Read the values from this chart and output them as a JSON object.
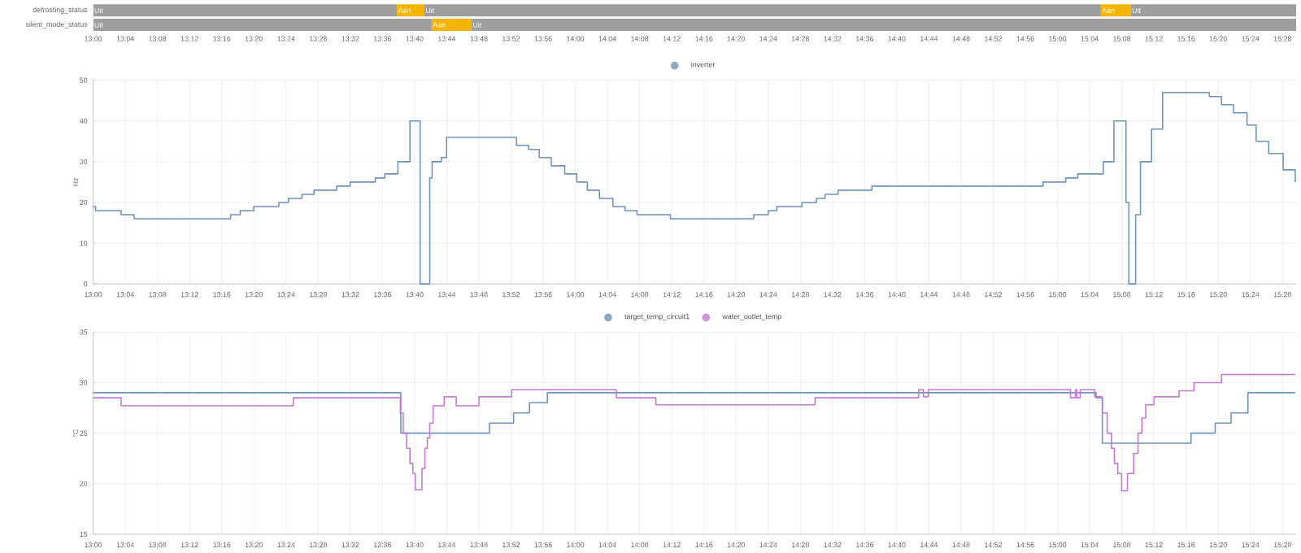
{
  "chart_data": [
    {
      "type": "bar",
      "orientation": "horizontal",
      "categories": [
        "defrosting_status",
        "silent_mode_status"
      ],
      "series": [
        {
          "name": "Uit",
          "color": "#9e9e9e",
          "base": [
            13,
            13
          ],
          "values": [
            0.63,
            0.702
          ]
        },
        {
          "name": "Aan",
          "color": "#f5b400",
          "base": [
            13.63,
            13.702
          ],
          "values": [
            0.057,
            0.083
          ]
        },
        {
          "name": "Uit",
          "color": "#9e9e9e",
          "base": [
            13.687,
            13.785
          ],
          "values": [
            1.403,
            1.71
          ]
        },
        {
          "name": "Aan",
          "color": "#f5b400",
          "base": [
            15.09,
            null
          ],
          "values": [
            0.062,
            null
          ]
        },
        {
          "name": "Uit",
          "color": "#9e9e9e",
          "base": [
            15.152,
            null
          ],
          "values": [
            0.343,
            null
          ]
        }
      ],
      "xlim": [
        13,
        15.495
      ],
      "xticks": [
        {
          "value": 13,
          "label": "13:00"
        },
        {
          "value": 13.0667,
          "label": "13:04"
        },
        {
          "value": 13.1333,
          "label": "13:08"
        },
        {
          "value": 13.2,
          "label": "13:12"
        },
        {
          "value": 13.2667,
          "label": "13:16"
        },
        {
          "value": 13.3333,
          "label": "13:20"
        },
        {
          "value": 13.4,
          "label": "13:24"
        },
        {
          "value": 13.4667,
          "label": "13:28"
        },
        {
          "value": 13.5333,
          "label": "13:32"
        },
        {
          "value": 13.6,
          "label": "13:36"
        },
        {
          "value": 13.6667,
          "label": "13:40"
        },
        {
          "value": 13.7333,
          "label": "13:44"
        },
        {
          "value": 13.8,
          "label": "13:48"
        },
        {
          "value": 13.8667,
          "label": "13:52"
        },
        {
          "value": 13.9333,
          "label": "13:56"
        },
        {
          "value": 14,
          "label": "14:00"
        },
        {
          "value": 14.0667,
          "label": "14:04"
        },
        {
          "value": 14.1333,
          "label": "14:08"
        },
        {
          "value": 14.2,
          "label": "14:12"
        },
        {
          "value": 14.2667,
          "label": "14:16"
        },
        {
          "value": 14.3333,
          "label": "14:20"
        },
        {
          "value": 14.4,
          "label": "14:24"
        },
        {
          "value": 14.4667,
          "label": "14:28"
        },
        {
          "value": 14.5333,
          "label": "14:32"
        },
        {
          "value": 14.6,
          "label": "14:36"
        },
        {
          "value": 14.6667,
          "label": "14:40"
        },
        {
          "value": 14.7333,
          "label": "14:44"
        },
        {
          "value": 14.8,
          "label": "14:48"
        },
        {
          "value": 14.8667,
          "label": "14:52"
        },
        {
          "value": 14.9333,
          "label": "14:56"
        },
        {
          "value": 15,
          "label": "15:00"
        },
        {
          "value": 15.0667,
          "label": "15:04"
        },
        {
          "value": 15.1333,
          "label": "15:08"
        },
        {
          "value": 15.2,
          "label": "15:12"
        },
        {
          "value": 15.2667,
          "label": "15:16"
        },
        {
          "value": 15.3333,
          "label": "15:20"
        },
        {
          "value": 15.4,
          "label": "15:24"
        },
        {
          "value": 15.4667,
          "label": "15:28"
        }
      ]
    },
    {
      "type": "step",
      "ylabel": "Hz",
      "legend": "top",
      "grid": true,
      "series": [
        {
          "name": "inverter",
          "color": "#7293b8",
          "x": [
            13.0,
            13.005,
            13.058,
            13.085,
            13.285,
            13.305,
            13.333,
            13.385,
            13.405,
            13.433,
            13.458,
            13.505,
            13.533,
            13.585,
            13.605,
            13.632,
            13.657,
            13.678,
            13.698,
            13.703,
            13.722,
            13.733,
            13.878,
            13.903,
            13.925,
            13.95,
            13.978,
            14.003,
            14.025,
            14.05,
            14.078,
            14.103,
            14.128,
            14.197,
            14.37,
            14.4,
            14.418,
            14.47,
            14.5,
            14.518,
            14.545,
            14.615,
            14.97,
            15.017,
            15.042,
            15.095,
            15.117,
            15.142,
            15.148,
            15.162,
            15.172,
            15.195,
            15.218,
            15.315,
            15.34,
            15.365,
            15.393,
            15.412,
            15.438,
            15.468,
            15.493
          ],
          "values": [
            19,
            18,
            17,
            16,
            17,
            18,
            19,
            20,
            21,
            22,
            23,
            24,
            25,
            26,
            27,
            30,
            40,
            0,
            26,
            30,
            31,
            36,
            34,
            33,
            31,
            29,
            27,
            25,
            23,
            21,
            19,
            18,
            17,
            16,
            17,
            18,
            19,
            20,
            21,
            22,
            23,
            24,
            25,
            26,
            27,
            30,
            40,
            20,
            0,
            17,
            30,
            38,
            47,
            46,
            44,
            42,
            39,
            35,
            32,
            28,
            25
          ]
        }
      ],
      "xlim": [
        13,
        15.495
      ],
      "ylim": [
        0,
        50
      ],
      "yticks": [
        0,
        10,
        20,
        30,
        40,
        50
      ],
      "xticks": [
        {
          "value": 13,
          "label": "13:00"
        },
        {
          "value": 13.0667,
          "label": "13:04"
        },
        {
          "value": 13.1333,
          "label": "13:08"
        },
        {
          "value": 13.2,
          "label": "13:12"
        },
        {
          "value": 13.2667,
          "label": "13:16"
        },
        {
          "value": 13.3333,
          "label": "13:20"
        },
        {
          "value": 13.4,
          "label": "13:24"
        },
        {
          "value": 13.4667,
          "label": "13:28"
        },
        {
          "value": 13.5333,
          "label": "13:32"
        },
        {
          "value": 13.6,
          "label": "13:36"
        },
        {
          "value": 13.6667,
          "label": "13:40"
        },
        {
          "value": 13.7333,
          "label": "13:44"
        },
        {
          "value": 13.8,
          "label": "13:48"
        },
        {
          "value": 13.8667,
          "label": "13:52"
        },
        {
          "value": 13.9333,
          "label": "13:56"
        },
        {
          "value": 14,
          "label": "14:00"
        },
        {
          "value": 14.0667,
          "label": "14:04"
        },
        {
          "value": 14.1333,
          "label": "14:08"
        },
        {
          "value": 14.2,
          "label": "14:12"
        },
        {
          "value": 14.2667,
          "label": "14:16"
        },
        {
          "value": 14.3333,
          "label": "14:20"
        },
        {
          "value": 14.4,
          "label": "14:24"
        },
        {
          "value": 14.4667,
          "label": "14:28"
        },
        {
          "value": 14.5333,
          "label": "14:32"
        },
        {
          "value": 14.6,
          "label": "14:36"
        },
        {
          "value": 14.6667,
          "label": "14:40"
        },
        {
          "value": 14.7333,
          "label": "14:44"
        },
        {
          "value": 14.8,
          "label": "14:48"
        },
        {
          "value": 14.8667,
          "label": "14:52"
        },
        {
          "value": 14.9333,
          "label": "14:56"
        },
        {
          "value": 15,
          "label": "15:00"
        },
        {
          "value": 15.0667,
          "label": "15:04"
        },
        {
          "value": 15.1333,
          "label": "15:08"
        },
        {
          "value": 15.2,
          "label": "15:12"
        },
        {
          "value": 15.2667,
          "label": "15:16"
        },
        {
          "value": 15.3333,
          "label": "15:20"
        },
        {
          "value": 15.4,
          "label": "15:24"
        },
        {
          "value": 15.4667,
          "label": "15:28"
        }
      ]
    },
    {
      "type": "step",
      "ylabel": "°C",
      "legend": "top",
      "grid": true,
      "series": [
        {
          "name": "target_temp_circuit1",
          "color": "#7293b8",
          "x": [
            13.0,
            13.638,
            13.822,
            13.872,
            13.905,
            13.942,
            15.08,
            15.093,
            15.277,
            15.327,
            15.36,
            15.395,
            15.493
          ],
          "values": [
            29,
            25,
            26,
            27,
            28,
            29,
            28.5,
            24,
            25,
            26,
            27,
            29,
            29
          ]
        },
        {
          "name": "water_outlet_temp",
          "color": "#c27bd1",
          "x": [
            13.0,
            13.058,
            13.415,
            13.637,
            13.643,
            13.65,
            13.657,
            13.663,
            13.668,
            13.682,
            13.688,
            13.693,
            13.698,
            13.705,
            13.728,
            13.753,
            13.8,
            13.868,
            14.085,
            14.167,
            14.497,
            14.712,
            14.722,
            14.732,
            15.027,
            15.037,
            15.04,
            15.047,
            15.077,
            15.093,
            15.103,
            15.112,
            15.118,
            15.125,
            15.133,
            15.145,
            15.158,
            15.167,
            15.175,
            15.183,
            15.2,
            15.252,
            15.283,
            15.34,
            15.493
          ],
          "values": [
            28.5,
            27.7,
            28.5,
            27,
            25,
            23.5,
            22,
            21,
            19.4,
            21.5,
            23.5,
            24.5,
            26,
            27.7,
            28.6,
            27.7,
            28.6,
            29.3,
            28.5,
            27.8,
            28.5,
            29.3,
            28.6,
            29.3,
            28.5,
            29.3,
            28.5,
            29.3,
            28.6,
            27,
            25,
            23.5,
            22,
            21,
            19.3,
            21,
            23,
            25,
            26.5,
            27.8,
            28.6,
            29.2,
            30,
            30.8,
            30.8
          ]
        }
      ],
      "xlim": [
        13,
        15.495
      ],
      "ylim": [
        15,
        35
      ],
      "yticks": [
        15,
        20,
        25,
        30,
        35
      ],
      "xticks": [
        {
          "value": 13,
          "label": "13:00"
        },
        {
          "value": 13.0667,
          "label": "13:04"
        },
        {
          "value": 13.1333,
          "label": "13:08"
        },
        {
          "value": 13.2,
          "label": "13:12"
        },
        {
          "value": 13.2667,
          "label": "13:16"
        },
        {
          "value": 13.3333,
          "label": "13:20"
        },
        {
          "value": 13.4,
          "label": "13:24"
        },
        {
          "value": 13.4667,
          "label": "13:28"
        },
        {
          "value": 13.5333,
          "label": "13:32"
        },
        {
          "value": 13.6,
          "label": "13:36"
        },
        {
          "value": 13.6667,
          "label": "13:40"
        },
        {
          "value": 13.7333,
          "label": "13:44"
        },
        {
          "value": 13.8,
          "label": "13:48"
        },
        {
          "value": 13.8667,
          "label": "13:52"
        },
        {
          "value": 13.9333,
          "label": "13:56"
        },
        {
          "value": 14,
          "label": "14:00"
        },
        {
          "value": 14.0667,
          "label": "14:04"
        },
        {
          "value": 14.1333,
          "label": "14:08"
        },
        {
          "value": 14.2,
          "label": "14:12"
        },
        {
          "value": 14.2667,
          "label": "14:16"
        },
        {
          "value": 14.3333,
          "label": "14:20"
        },
        {
          "value": 14.4,
          "label": "14:24"
        },
        {
          "value": 14.4667,
          "label": "14:28"
        },
        {
          "value": 14.5333,
          "label": "14:32"
        },
        {
          "value": 14.6,
          "label": "14:36"
        },
        {
          "value": 14.6667,
          "label": "14:40"
        },
        {
          "value": 14.7333,
          "label": "14:44"
        },
        {
          "value": 14.8,
          "label": "14:48"
        },
        {
          "value": 14.8667,
          "label": "14:52"
        },
        {
          "value": 14.9333,
          "label": "14:56"
        },
        {
          "value": 15,
          "label": "15:00"
        },
        {
          "value": 15.0667,
          "label": "15:04"
        },
        {
          "value": 15.1333,
          "label": "15:08"
        },
        {
          "value": 15.2,
          "label": "15:12"
        },
        {
          "value": 15.2667,
          "label": "15:16"
        },
        {
          "value": 15.3333,
          "label": "15:20"
        },
        {
          "value": 15.4,
          "label": "15:24"
        },
        {
          "value": 15.4667,
          "label": "15:28"
        }
      ]
    }
  ]
}
